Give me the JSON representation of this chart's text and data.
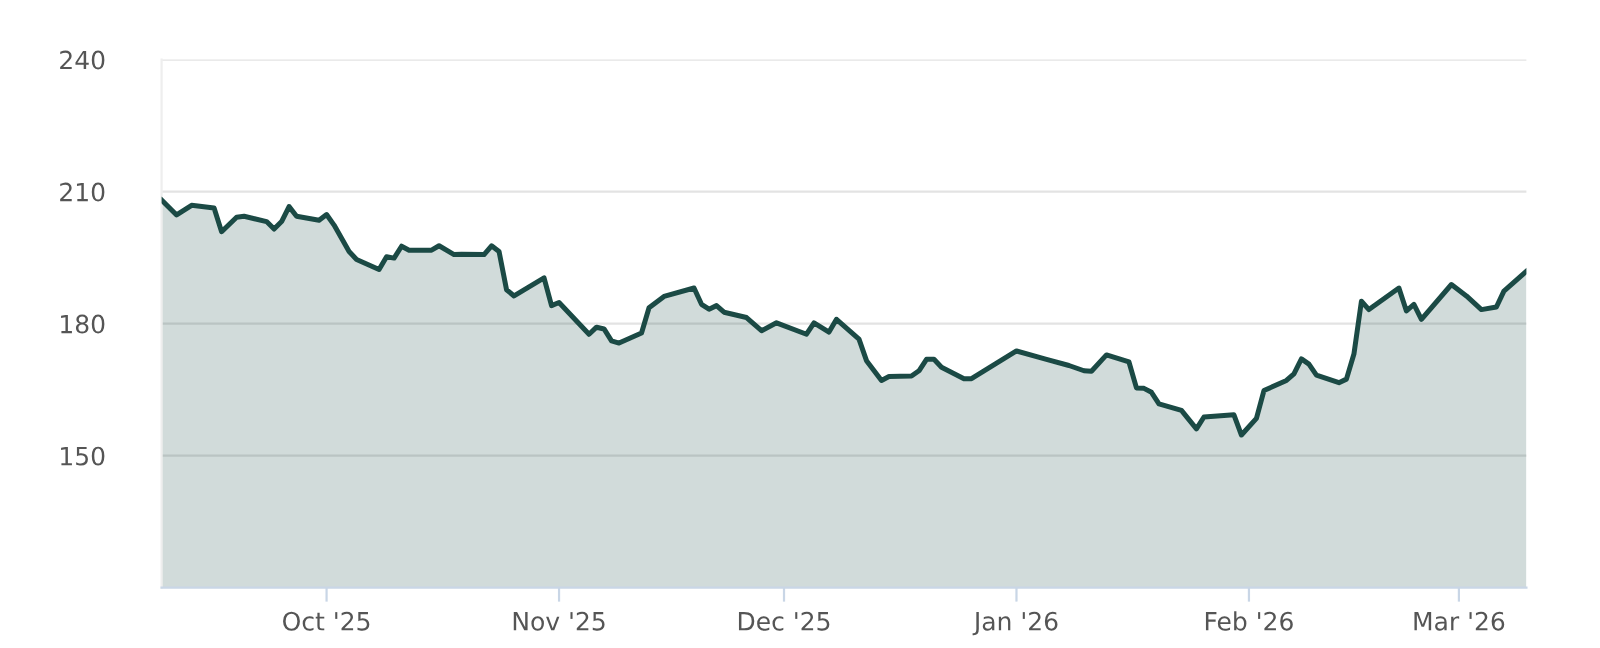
{
  "chart_data": {
    "type": "area",
    "x": [
      "2025-09-09",
      "2025-09-11",
      "2025-09-13",
      "2025-09-16",
      "2025-09-17",
      "2025-09-19",
      "2025-09-20",
      "2025-09-23",
      "2025-09-24",
      "2025-09-25",
      "2025-09-26",
      "2025-09-27",
      "2025-09-30",
      "2025-10-01",
      "2025-10-02",
      "2025-10-04",
      "2025-10-05",
      "2025-10-08",
      "2025-10-09",
      "2025-10-10",
      "2025-10-11",
      "2025-10-12",
      "2025-10-15",
      "2025-10-16",
      "2025-10-18",
      "2025-10-19",
      "2025-10-22",
      "2025-10-23",
      "2025-10-24",
      "2025-10-25",
      "2025-10-26",
      "2025-10-30",
      "2025-10-31",
      "2025-11-01",
      "2025-11-05",
      "2025-11-06",
      "2025-11-07",
      "2025-11-08",
      "2025-11-09",
      "2025-11-12",
      "2025-11-13",
      "2025-11-15",
      "2025-11-19",
      "2025-11-20",
      "2025-11-21",
      "2025-11-22",
      "2025-11-23",
      "2025-11-26",
      "2025-11-28",
      "2025-11-30",
      "2025-12-04",
      "2025-12-05",
      "2025-12-07",
      "2025-12-08",
      "2025-12-11",
      "2025-12-12",
      "2025-12-14",
      "2025-12-15",
      "2025-12-18",
      "2025-12-19",
      "2025-12-20",
      "2025-12-21",
      "2025-12-22",
      "2025-12-25",
      "2025-12-26",
      "2026-01-01",
      "2026-01-05",
      "2026-01-08",
      "2026-01-10",
      "2026-01-11",
      "2026-01-13",
      "2026-01-16",
      "2026-01-17",
      "2026-01-18",
      "2026-01-19",
      "2026-01-20",
      "2026-01-23",
      "2026-01-25",
      "2026-01-26",
      "2026-01-30",
      "2026-01-31",
      "2026-02-02",
      "2026-02-03",
      "2026-02-06",
      "2026-02-07",
      "2026-02-08",
      "2026-02-09",
      "2026-02-10",
      "2026-02-13",
      "2026-02-14",
      "2026-02-15",
      "2026-02-16",
      "2026-02-17",
      "2026-02-21",
      "2026-02-22",
      "2026-02-23",
      "2026-02-24",
      "2026-02-28",
      "2026-03-02",
      "2026-03-04",
      "2026-03-06",
      "2026-03-07",
      "2026-03-10"
    ],
    "series": [
      {
        "color": "#1b4a45",
        "values": [
          208.1,
          204.7,
          206.9,
          206.3,
          200.9,
          204.2,
          204.4,
          203.2,
          201.5,
          203.2,
          206.6,
          204.4,
          203.5,
          204.8,
          202.4,
          196.4,
          194.6,
          192.3,
          195.2,
          194.9,
          197.6,
          196.7,
          196.7,
          197.7,
          195.7,
          195.8,
          195.7,
          197.7,
          196.4,
          187.7,
          186.3,
          190.4,
          184.1,
          184.8,
          177.6,
          179.2,
          178.8,
          176.1,
          175.6,
          177.9,
          183.6,
          186.2,
          188.1,
          184.4,
          183.3,
          184.1,
          182.6,
          181.4,
          178.4,
          180.2,
          177.6,
          180.2,
          178.1,
          181.0,
          176.5,
          171.6,
          167.1,
          168.0,
          168.1,
          169.3,
          171.9,
          171.9,
          170.1,
          167.5,
          167.5,
          173.8,
          171.9,
          170.5,
          169.3,
          169.2,
          172.9,
          171.3,
          165.4,
          165.3,
          164.4,
          161.8,
          160.3,
          156.1,
          158.8,
          159.3,
          154.7,
          158.5,
          164.8,
          167.1,
          168.6,
          172.0,
          170.8,
          168.3,
          166.6,
          167.4,
          173.1,
          185.1,
          183.2,
          188.1,
          182.9,
          184.4,
          181.0,
          188.9,
          186.3,
          183.2,
          183.8,
          187.4,
          191.9
        ]
      }
    ],
    "xlim": [
      "2025-09-09",
      "2026-03-10"
    ],
    "xticks": [
      {
        "value": "2025-10-01",
        "label": "Oct '25"
      },
      {
        "value": "2025-11-01",
        "label": "Nov '25"
      },
      {
        "value": "2025-12-01",
        "label": "Dec '25"
      },
      {
        "value": "2026-01-01",
        "label": "Jan '26"
      },
      {
        "value": "2026-02-01",
        "label": "Feb '26"
      },
      {
        "value": "2026-03-01",
        "label": "Mar '26"
      }
    ],
    "ylim": [
      120,
      240
    ],
    "yticks": [
      150,
      180,
      210,
      240
    ],
    "grid": "y",
    "marker": "none",
    "line_style": "solid"
  }
}
